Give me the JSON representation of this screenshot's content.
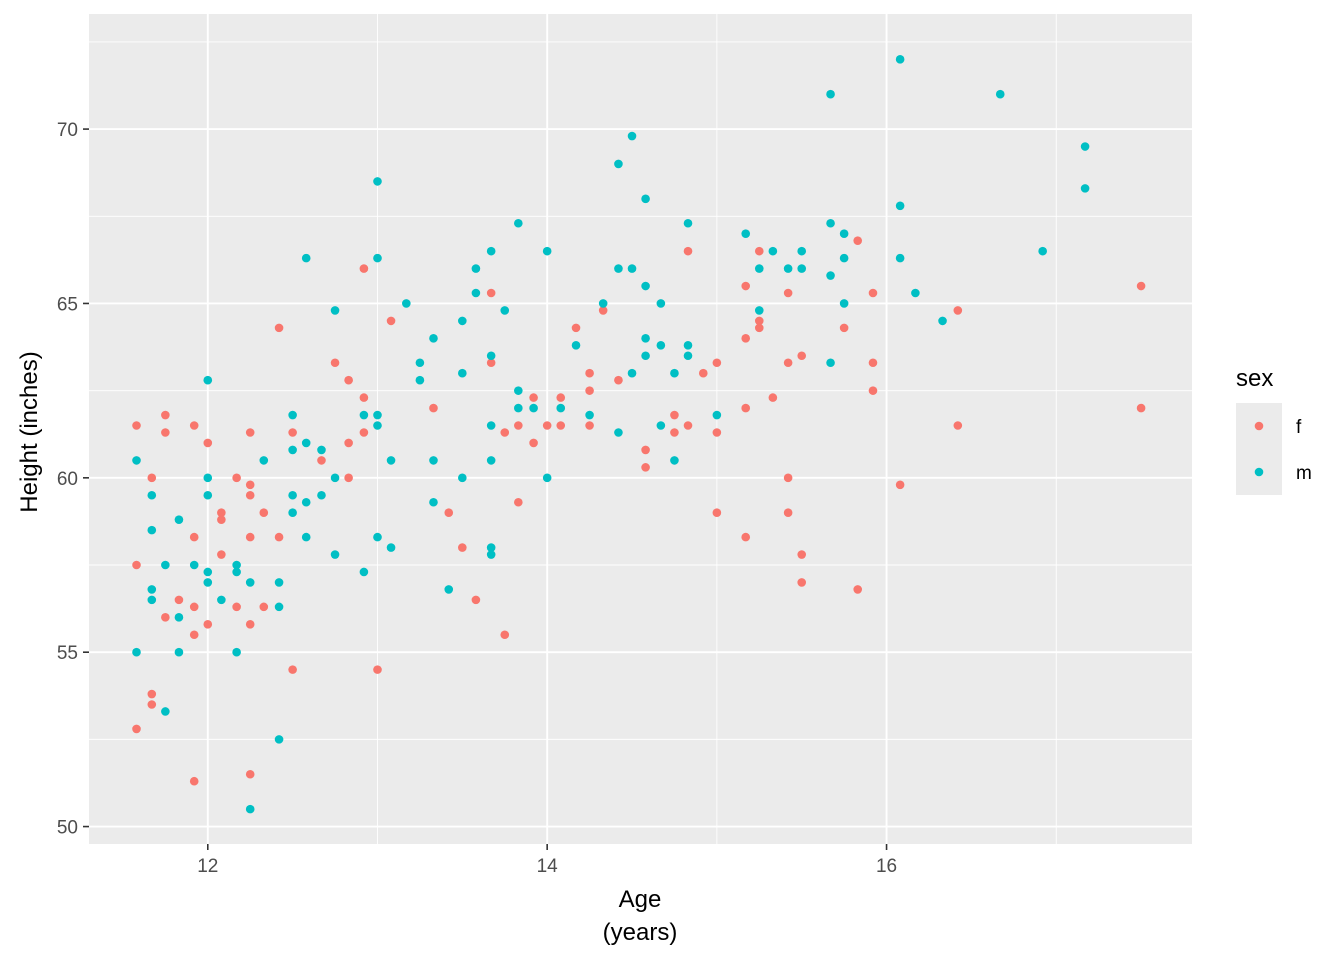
{
  "chart_data": {
    "type": "scatter",
    "xlabel": [
      "Age",
      "(years)"
    ],
    "ylabel": "Height (inches)",
    "xlim": [
      11.3,
      17.8
    ],
    "ylim": [
      49.5,
      73.3
    ],
    "xticks": [
      12,
      14,
      16
    ],
    "yticks": [
      50,
      55,
      60,
      65,
      70
    ],
    "grid": true,
    "background": "#ebebeb",
    "legend": {
      "title": "sex",
      "position": "right"
    },
    "series": [
      {
        "name": "f",
        "color": "#f8766d",
        "points": [
          [
            11.58,
            61.5
          ],
          [
            11.58,
            57.5
          ],
          [
            11.58,
            52.8
          ],
          [
            11.67,
            60.0
          ],
          [
            11.67,
            53.8
          ],
          [
            11.67,
            53.5
          ],
          [
            11.75,
            61.8
          ],
          [
            11.75,
            61.3
          ],
          [
            11.75,
            56.0
          ],
          [
            11.83,
            56.5
          ],
          [
            11.92,
            61.5
          ],
          [
            11.92,
            58.3
          ],
          [
            11.92,
            56.3
          ],
          [
            11.92,
            55.5
          ],
          [
            11.92,
            51.3
          ],
          [
            12.0,
            61.0
          ],
          [
            12.0,
            55.8
          ],
          [
            12.08,
            59.0
          ],
          [
            12.08,
            58.8
          ],
          [
            12.08,
            57.8
          ],
          [
            12.17,
            60.0
          ],
          [
            12.17,
            56.3
          ],
          [
            12.25,
            61.3
          ],
          [
            12.25,
            59.8
          ],
          [
            12.25,
            59.5
          ],
          [
            12.25,
            58.3
          ],
          [
            12.25,
            55.8
          ],
          [
            12.25,
            51.5
          ],
          [
            12.33,
            59.0
          ],
          [
            12.33,
            56.3
          ],
          [
            12.42,
            64.3
          ],
          [
            12.42,
            58.3
          ],
          [
            12.5,
            61.3
          ],
          [
            12.5,
            54.5
          ],
          [
            12.67,
            60.5
          ],
          [
            12.75,
            63.3
          ],
          [
            12.83,
            62.8
          ],
          [
            12.83,
            61.0
          ],
          [
            12.83,
            60.0
          ],
          [
            12.92,
            66.0
          ],
          [
            12.92,
            62.3
          ],
          [
            12.92,
            61.3
          ],
          [
            13.0,
            54.5
          ],
          [
            13.08,
            64.5
          ],
          [
            13.33,
            62.0
          ],
          [
            13.42,
            59.0
          ],
          [
            13.5,
            58.0
          ],
          [
            13.58,
            56.5
          ],
          [
            13.67,
            65.3
          ],
          [
            13.67,
            63.3
          ],
          [
            13.75,
            61.3
          ],
          [
            13.75,
            55.5
          ],
          [
            13.83,
            61.5
          ],
          [
            13.83,
            59.3
          ],
          [
            13.92,
            62.3
          ],
          [
            13.92,
            61.0
          ],
          [
            14.0,
            61.5
          ],
          [
            14.08,
            62.3
          ],
          [
            14.08,
            61.5
          ],
          [
            14.17,
            64.3
          ],
          [
            14.25,
            63.0
          ],
          [
            14.25,
            62.5
          ],
          [
            14.25,
            61.5
          ],
          [
            14.33,
            64.8
          ],
          [
            14.42,
            62.8
          ],
          [
            14.58,
            60.8
          ],
          [
            14.58,
            60.3
          ],
          [
            14.75,
            61.8
          ],
          [
            14.75,
            61.3
          ],
          [
            14.83,
            66.5
          ],
          [
            14.83,
            61.5
          ],
          [
            14.92,
            63.0
          ],
          [
            15.0,
            63.3
          ],
          [
            15.0,
            61.3
          ],
          [
            15.0,
            59.0
          ],
          [
            15.17,
            65.5
          ],
          [
            15.17,
            64.0
          ],
          [
            15.17,
            62.0
          ],
          [
            15.17,
            58.3
          ],
          [
            15.25,
            66.5
          ],
          [
            15.25,
            64.5
          ],
          [
            15.25,
            64.3
          ],
          [
            15.33,
            62.3
          ],
          [
            15.42,
            65.3
          ],
          [
            15.42,
            63.3
          ],
          [
            15.42,
            60.0
          ],
          [
            15.42,
            59.0
          ],
          [
            15.5,
            63.5
          ],
          [
            15.5,
            57.8
          ],
          [
            15.5,
            57.0
          ],
          [
            15.75,
            64.3
          ],
          [
            15.83,
            66.8
          ],
          [
            15.83,
            56.8
          ],
          [
            15.92,
            65.3
          ],
          [
            15.92,
            63.3
          ],
          [
            15.92,
            62.5
          ],
          [
            16.08,
            59.8
          ],
          [
            16.42,
            64.8
          ],
          [
            16.42,
            61.5
          ],
          [
            17.5,
            65.5
          ],
          [
            17.5,
            62.0
          ]
        ]
      },
      {
        "name": "m",
        "color": "#00bfc4",
        "points": [
          [
            11.58,
            60.5
          ],
          [
            11.58,
            55.0
          ],
          [
            11.67,
            59.5
          ],
          [
            11.67,
            58.5
          ],
          [
            11.67,
            56.8
          ],
          [
            11.67,
            56.5
          ],
          [
            11.75,
            57.5
          ],
          [
            11.75,
            53.3
          ],
          [
            11.83,
            58.8
          ],
          [
            11.83,
            56.0
          ],
          [
            11.83,
            55.0
          ],
          [
            11.92,
            57.5
          ],
          [
            12.0,
            62.8
          ],
          [
            12.0,
            60.0
          ],
          [
            12.0,
            59.5
          ],
          [
            12.0,
            57.3
          ],
          [
            12.0,
            57.0
          ],
          [
            12.08,
            56.5
          ],
          [
            12.17,
            57.5
          ],
          [
            12.17,
            57.3
          ],
          [
            12.17,
            55.0
          ],
          [
            12.25,
            57.0
          ],
          [
            12.25,
            50.5
          ],
          [
            12.33,
            60.5
          ],
          [
            12.42,
            57.0
          ],
          [
            12.42,
            56.3
          ],
          [
            12.42,
            52.5
          ],
          [
            12.5,
            61.8
          ],
          [
            12.5,
            60.8
          ],
          [
            12.5,
            59.5
          ],
          [
            12.5,
            59.0
          ],
          [
            12.58,
            66.3
          ],
          [
            12.58,
            61.0
          ],
          [
            12.58,
            59.3
          ],
          [
            12.58,
            58.3
          ],
          [
            12.67,
            60.8
          ],
          [
            12.67,
            59.5
          ],
          [
            12.75,
            64.8
          ],
          [
            12.75,
            60.0
          ],
          [
            12.75,
            57.8
          ],
          [
            12.92,
            61.8
          ],
          [
            12.92,
            57.3
          ],
          [
            13.0,
            68.5
          ],
          [
            13.0,
            66.3
          ],
          [
            13.0,
            61.8
          ],
          [
            13.0,
            61.5
          ],
          [
            13.0,
            58.3
          ],
          [
            13.08,
            60.5
          ],
          [
            13.08,
            58.0
          ],
          [
            13.17,
            65.0
          ],
          [
            13.25,
            63.3
          ],
          [
            13.25,
            62.8
          ],
          [
            13.33,
            64.0
          ],
          [
            13.33,
            60.5
          ],
          [
            13.33,
            59.3
          ],
          [
            13.42,
            56.8
          ],
          [
            13.5,
            64.5
          ],
          [
            13.5,
            63.0
          ],
          [
            13.5,
            60.0
          ],
          [
            13.58,
            66.0
          ],
          [
            13.58,
            65.3
          ],
          [
            13.67,
            66.5
          ],
          [
            13.67,
            63.5
          ],
          [
            13.67,
            61.5
          ],
          [
            13.67,
            60.5
          ],
          [
            13.67,
            58.0
          ],
          [
            13.67,
            57.8
          ],
          [
            13.75,
            64.8
          ],
          [
            13.83,
            67.3
          ],
          [
            13.83,
            62.5
          ],
          [
            13.83,
            62.0
          ],
          [
            13.92,
            62.0
          ],
          [
            14.0,
            66.5
          ],
          [
            14.0,
            60.0
          ],
          [
            14.08,
            62.0
          ],
          [
            14.17,
            63.8
          ],
          [
            14.25,
            61.8
          ],
          [
            14.33,
            65.0
          ],
          [
            14.42,
            69.0
          ],
          [
            14.42,
            66.0
          ],
          [
            14.42,
            61.3
          ],
          [
            14.5,
            69.8
          ],
          [
            14.5,
            66.0
          ],
          [
            14.5,
            63.0
          ],
          [
            14.58,
            68.0
          ],
          [
            14.58,
            65.5
          ],
          [
            14.58,
            64.0
          ],
          [
            14.58,
            63.5
          ],
          [
            14.67,
            65.0
          ],
          [
            14.67,
            63.8
          ],
          [
            14.67,
            61.5
          ],
          [
            14.75,
            63.0
          ],
          [
            14.75,
            60.5
          ],
          [
            14.83,
            67.3
          ],
          [
            14.83,
            63.8
          ],
          [
            14.83,
            63.5
          ],
          [
            15.0,
            61.8
          ],
          [
            15.17,
            67.0
          ],
          [
            15.25,
            66.0
          ],
          [
            15.25,
            64.8
          ],
          [
            15.33,
            66.5
          ],
          [
            15.42,
            66.0
          ],
          [
            15.5,
            66.5
          ],
          [
            15.5,
            66.0
          ],
          [
            15.67,
            71.0
          ],
          [
            15.67,
            67.3
          ],
          [
            15.67,
            65.8
          ],
          [
            15.67,
            63.3
          ],
          [
            15.75,
            67.0
          ],
          [
            15.75,
            66.3
          ],
          [
            15.75,
            65.0
          ],
          [
            16.08,
            72.0
          ],
          [
            16.08,
            67.8
          ],
          [
            16.08,
            66.3
          ],
          [
            16.17,
            65.3
          ],
          [
            16.33,
            64.5
          ],
          [
            16.67,
            71.0
          ],
          [
            16.92,
            66.5
          ],
          [
            17.17,
            69.5
          ],
          [
            17.17,
            68.3
          ]
        ]
      }
    ]
  }
}
